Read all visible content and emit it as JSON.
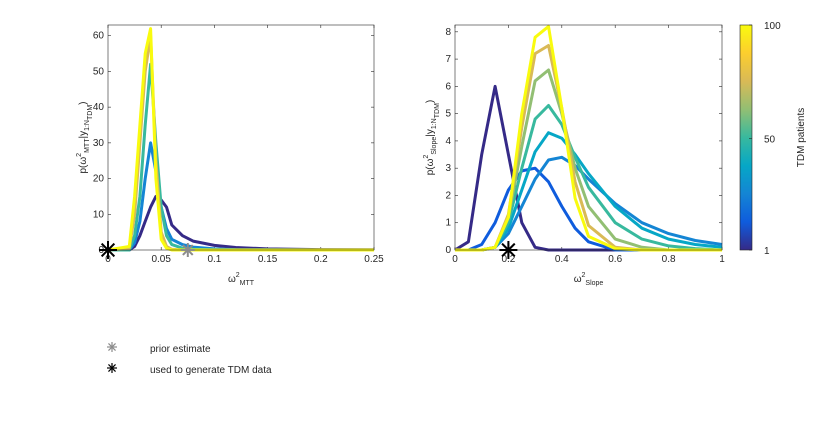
{
  "chart_data": [
    {
      "type": "line",
      "ylabel": [
        {
          "t": "p(ω"
        },
        {
          "t": "2",
          "pos": "sup"
        },
        {
          "t": "MTT",
          "pos": "sub"
        },
        {
          "t": "|y"
        },
        {
          "t": "1:N",
          "pos": "sub"
        },
        {
          "t": "TDM",
          "pos": "sub2"
        },
        {
          "t": ")"
        }
      ],
      "xlabel": [
        {
          "t": "ω"
        },
        {
          "t": "2",
          "pos": "sup"
        },
        {
          "t": "MTT",
          "pos": "sub"
        }
      ],
      "xlim": [
        0,
        0.25
      ],
      "xticks": [
        0,
        0.05,
        0.1,
        0.15,
        0.2,
        0.25
      ],
      "ylim": [
        0,
        63
      ],
      "yticks": [
        0,
        10,
        20,
        30,
        40,
        50,
        60
      ],
      "x": [
        0,
        0.02,
        0.025,
        0.03,
        0.035,
        0.04,
        0.045,
        0.05,
        0.055,
        0.06,
        0.07,
        0.08,
        0.1,
        0.12,
        0.15,
        0.2,
        0.25
      ],
      "series": [
        {
          "color": "#352a87",
          "values": [
            0,
            0,
            1,
            4,
            8,
            12,
            15,
            14,
            12,
            7,
            4,
            2.5,
            1.3,
            0.7,
            0.3,
            0.1,
            0.05
          ]
        },
        {
          "color": "#1485d4",
          "values": [
            0,
            0,
            2,
            8,
            20,
            30,
            22,
            12,
            6,
            3,
            1.5,
            0.8,
            0.3,
            0.1,
            0.05,
            0,
            0
          ]
        },
        {
          "color": "#38b99e",
          "values": [
            0,
            0,
            4,
            15,
            35,
            52,
            30,
            12,
            4,
            1.5,
            0.5,
            0.2,
            0,
            0,
            0,
            0,
            0
          ]
        },
        {
          "color": "#d9ba56",
          "values": [
            0,
            0.5,
            10,
            30,
            50,
            60,
            25,
            5,
            1,
            0.2,
            0,
            0,
            0,
            0,
            0,
            0,
            0
          ]
        },
        {
          "color": "#f9fb0e",
          "values": [
            0,
            1,
            15,
            35,
            55,
            62,
            20,
            3,
            0.5,
            0,
            0,
            0,
            0,
            0,
            0,
            0,
            0
          ]
        }
      ],
      "prior_estimate": {
        "x": 0.075,
        "y": 0
      },
      "generating_value": {
        "x": 0,
        "y": 0
      }
    },
    {
      "type": "line",
      "ylabel": [
        {
          "t": "p(ω"
        },
        {
          "t": "2",
          "pos": "sup"
        },
        {
          "t": "Slope",
          "pos": "sub"
        },
        {
          "t": "|y"
        },
        {
          "t": "1:N",
          "pos": "sub"
        },
        {
          "t": "TDM",
          "pos": "sub2"
        },
        {
          "t": ")"
        }
      ],
      "xlabel": [
        {
          "t": "ω"
        },
        {
          "t": "2",
          "pos": "sup"
        },
        {
          "t": "Slope",
          "pos": "sub"
        }
      ],
      "xlim": [
        0,
        1
      ],
      "xticks": [
        0,
        0.2,
        0.4,
        0.6,
        0.8,
        1
      ],
      "ylim": [
        0,
        8.25
      ],
      "yticks": [
        0,
        1,
        2,
        3,
        4,
        5,
        6,
        7,
        8
      ],
      "x": [
        0,
        0.05,
        0.1,
        0.15,
        0.2,
        0.25,
        0.3,
        0.35,
        0.4,
        0.45,
        0.5,
        0.6,
        0.7,
        0.8,
        0.9,
        1
      ],
      "series": [
        {
          "color": "#352a87",
          "values": [
            0,
            0.3,
            3.5,
            6,
            3.5,
            1,
            0.1,
            0,
            0,
            0,
            0,
            0,
            0,
            0,
            0,
            0
          ]
        },
        {
          "color": "#0f5cdd",
          "values": [
            0,
            0,
            0.2,
            1,
            2.2,
            2.9,
            3,
            2.5,
            1.6,
            0.8,
            0.3,
            0,
            0,
            0,
            0,
            0
          ]
        },
        {
          "color": "#1485d4",
          "values": [
            0,
            0,
            0,
            0.1,
            0.6,
            1.6,
            2.6,
            3.3,
            3.4,
            3.1,
            2.6,
            1.7,
            1,
            0.6,
            0.35,
            0.2
          ]
        },
        {
          "color": "#06a7c6",
          "values": [
            0,
            0,
            0,
            0.1,
            0.8,
            2.2,
            3.6,
            4.3,
            4.1,
            3.5,
            2.8,
            1.6,
            0.8,
            0.4,
            0.2,
            0.1
          ]
        },
        {
          "color": "#38b99e",
          "values": [
            0,
            0,
            0,
            0.1,
            1,
            3,
            4.8,
            5.3,
            4.6,
            3.4,
            2.3,
            1,
            0.4,
            0.15,
            0.05,
            0
          ]
        },
        {
          "color": "#92bf73",
          "values": [
            0,
            0,
            0,
            0.1,
            1.2,
            3.8,
            6.2,
            6.6,
            5,
            3,
            1.6,
            0.4,
            0.1,
            0,
            0,
            0
          ]
        },
        {
          "color": "#d9ba56",
          "values": [
            0,
            0,
            0,
            0.1,
            1.3,
            4.5,
            7.2,
            7.5,
            5.2,
            2.5,
            0.9,
            0.1,
            0,
            0,
            0,
            0
          ]
        },
        {
          "color": "#f9fb0e",
          "values": [
            0,
            0,
            0,
            0.1,
            1.2,
            5,
            7.8,
            8.2,
            5.2,
            1.9,
            0.5,
            0.05,
            0,
            0,
            0,
            0
          ]
        }
      ],
      "prior_estimate": {
        "x": 0.2,
        "y": 0
      },
      "generating_value": {
        "x": 0.2,
        "y": 0
      }
    }
  ],
  "colorbar": {
    "label": "TDM patients",
    "lim": [
      1,
      100
    ],
    "ticks": [
      1,
      50,
      100
    ],
    "colors": [
      "#352a87",
      "#0f5cdd",
      "#1485d4",
      "#06a7c6",
      "#38b99e",
      "#92bf73",
      "#d9ba56",
      "#fcce2e",
      "#f9fb0e"
    ]
  },
  "legend": {
    "prior_estimate": {
      "label": "prior estimate",
      "color": "#8c8c8c"
    },
    "generating_value": {
      "label": "used to generate TDM data",
      "color": "#000000"
    }
  }
}
